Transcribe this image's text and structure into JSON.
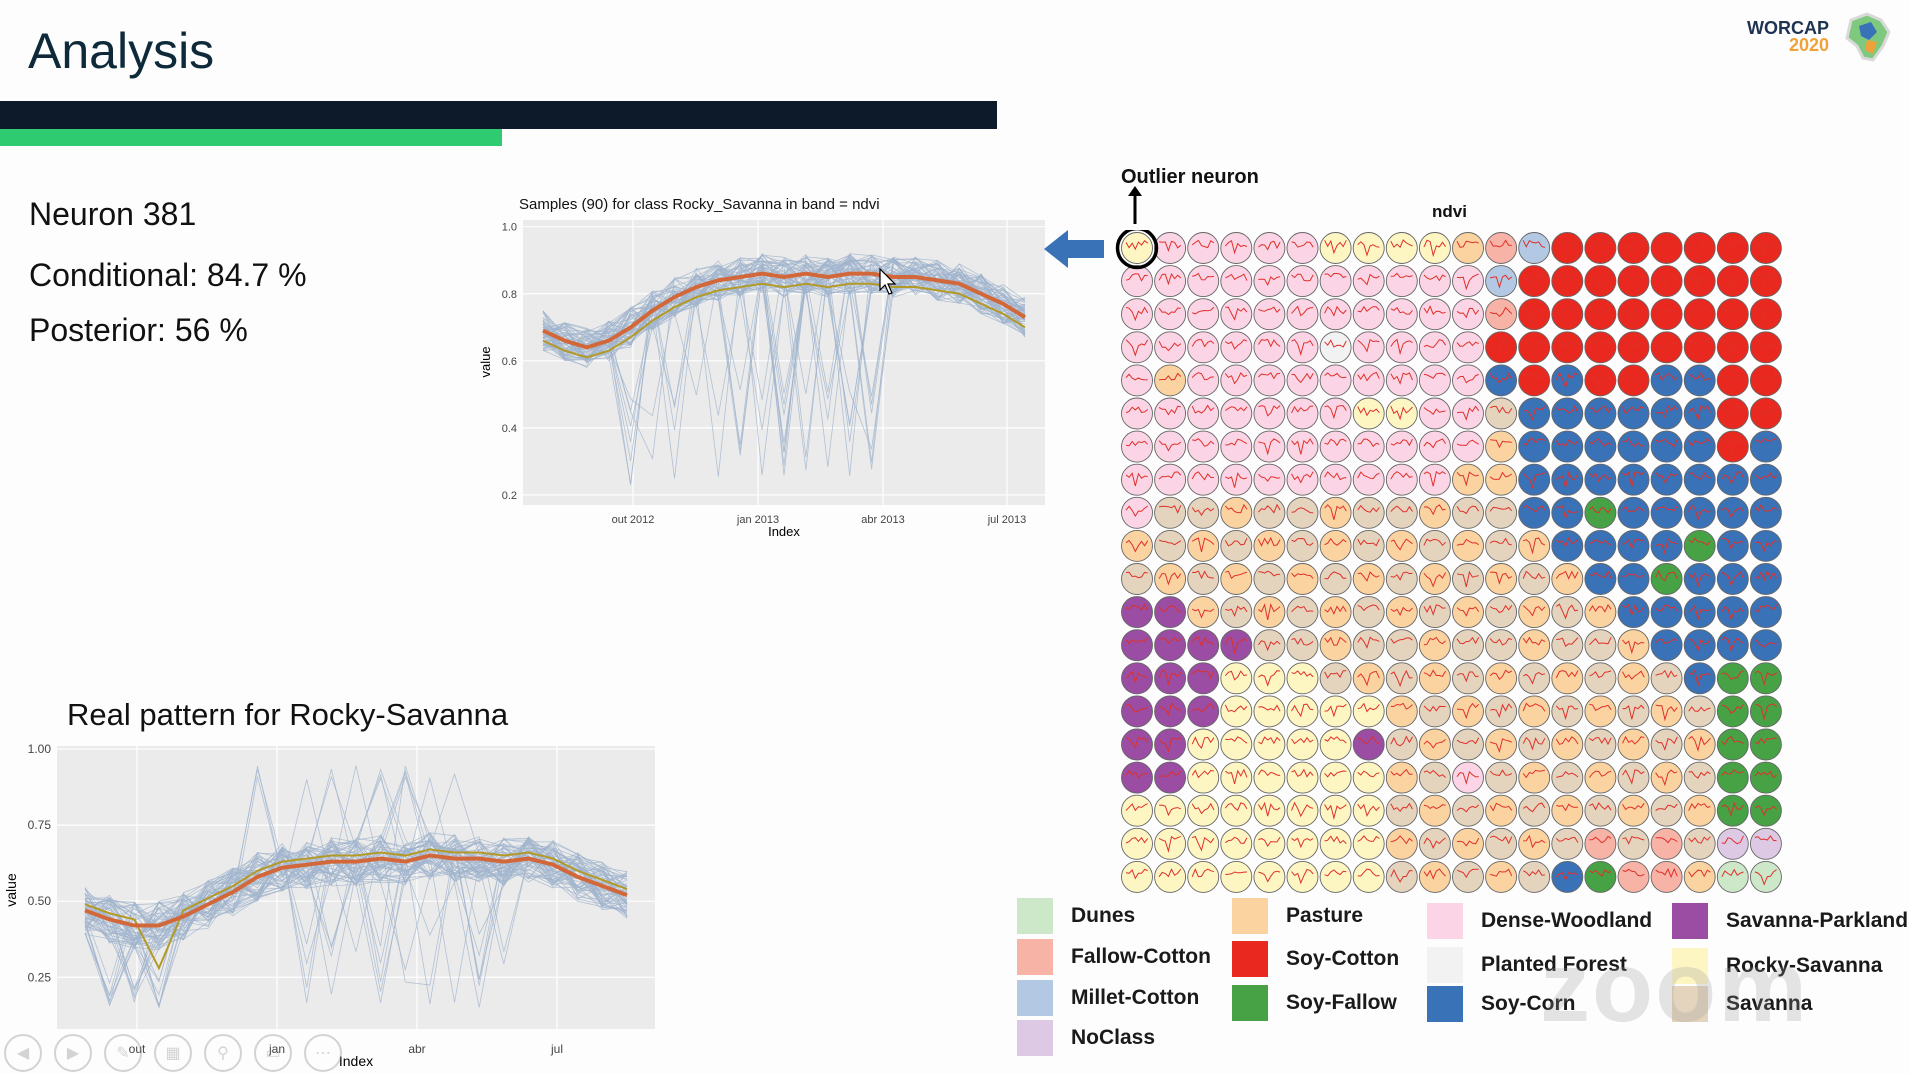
{
  "slide": {
    "title": "Analysis",
    "stats": {
      "neuron": "Neuron 381",
      "conditional": "Conditional: 84.7 %",
      "posterior": "Posterior: 56 %"
    },
    "logo": {
      "line1": "WORCAP",
      "line2": "2020"
    }
  },
  "plot_top": {
    "title": "Samples (90) for class Rocky_Savanna in band = ndvi",
    "xlabel": "Index",
    "ylabel": "value",
    "xticks": [
      "out 2012",
      "jan 2013",
      "abr 2013",
      "jul 2013"
    ],
    "yticks": [
      "1.0",
      "0.8",
      "0.6",
      "0.4",
      "0.2"
    ]
  },
  "plot_bottom": {
    "title": "Real pattern for Rocky-Savanna",
    "xlabel": "Index",
    "ylabel": "value",
    "xticks": [
      "out",
      "jan",
      "abr",
      "jul"
    ],
    "yticks": [
      "1.00",
      "0.75",
      "0.50",
      "0.25"
    ]
  },
  "som": {
    "arrow_label": "Outlier neuron",
    "title": "ndvi"
  },
  "legend": [
    {
      "label": "Dunes",
      "color": "#cde8c9"
    },
    {
      "label": "Fallow-Cotton",
      "color": "#f7b3a6"
    },
    {
      "label": "Millet-Cotton",
      "color": "#b2c8e3"
    },
    {
      "label": "NoClass",
      "color": "#ddc9e3"
    },
    {
      "label": "Pasture",
      "color": "#fbd3a0"
    },
    {
      "label": "Soy-Cotton",
      "color": "#e9291f"
    },
    {
      "label": "Soy-Fallow",
      "color": "#46a245"
    },
    {
      "label": "Dense-Woodland",
      "color": "#fbd5e6"
    },
    {
      "label": "Planted Forest",
      "color": "#f2f2f2"
    },
    {
      "label": "Soy-Corn",
      "color": "#3a72b8"
    },
    {
      "label": "Savanna-Parkland",
      "color": "#9a4da3"
    },
    {
      "label": "Rocky-Savanna",
      "color": "#fdf6c3"
    },
    {
      "label": "Savanna",
      "color": "#e5d4bd"
    }
  ],
  "watermark": "zoom"
}
